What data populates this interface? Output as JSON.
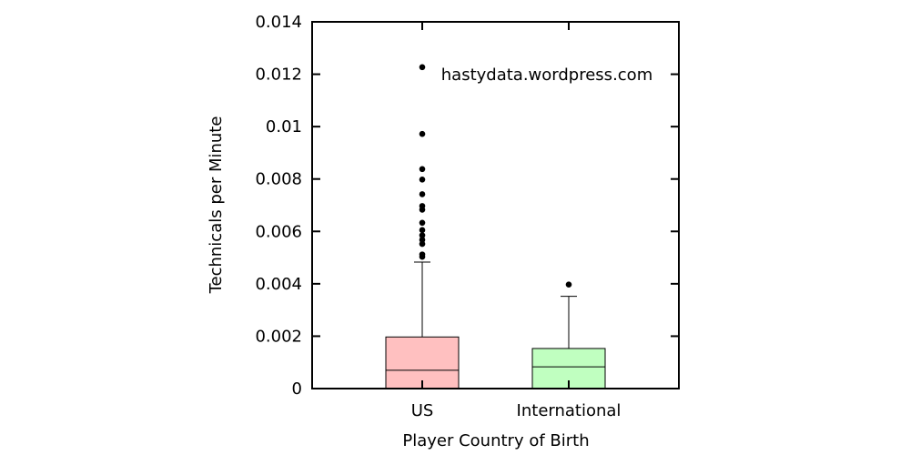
{
  "chart_data": {
    "type": "box",
    "xlabel": "Player Country of Birth",
    "ylabel": "Technicals per Minute",
    "ylim": [
      0,
      0.014
    ],
    "yticks": [
      "0",
      "0.002",
      "0.004",
      "0.006",
      "0.008",
      "0.01",
      "0.012",
      "0.014"
    ],
    "annotation": "hastydata.wordpress.com",
    "annotation_color": "#0000ee",
    "categories": [
      "US",
      "International"
    ],
    "boxes": [
      {
        "category": "US",
        "color": "#ffc0c0",
        "whisker_low": 0,
        "q1": 0,
        "median": 0.0007,
        "q3": 0.00197,
        "whisker_high": 0.00483,
        "outliers": [
          0.00503,
          0.00512,
          0.00552,
          0.00568,
          0.00585,
          0.00605,
          0.00633,
          0.00683,
          0.00697,
          0.00742,
          0.00798,
          0.00838,
          0.00972,
          0.01227
        ]
      },
      {
        "category": "International",
        "color": "#c0ffc0",
        "whisker_low": 0,
        "q1": 0,
        "median": 0.00083,
        "q3": 0.00153,
        "whisker_high": 0.00352,
        "outliers": [
          0.00397
        ]
      }
    ]
  }
}
